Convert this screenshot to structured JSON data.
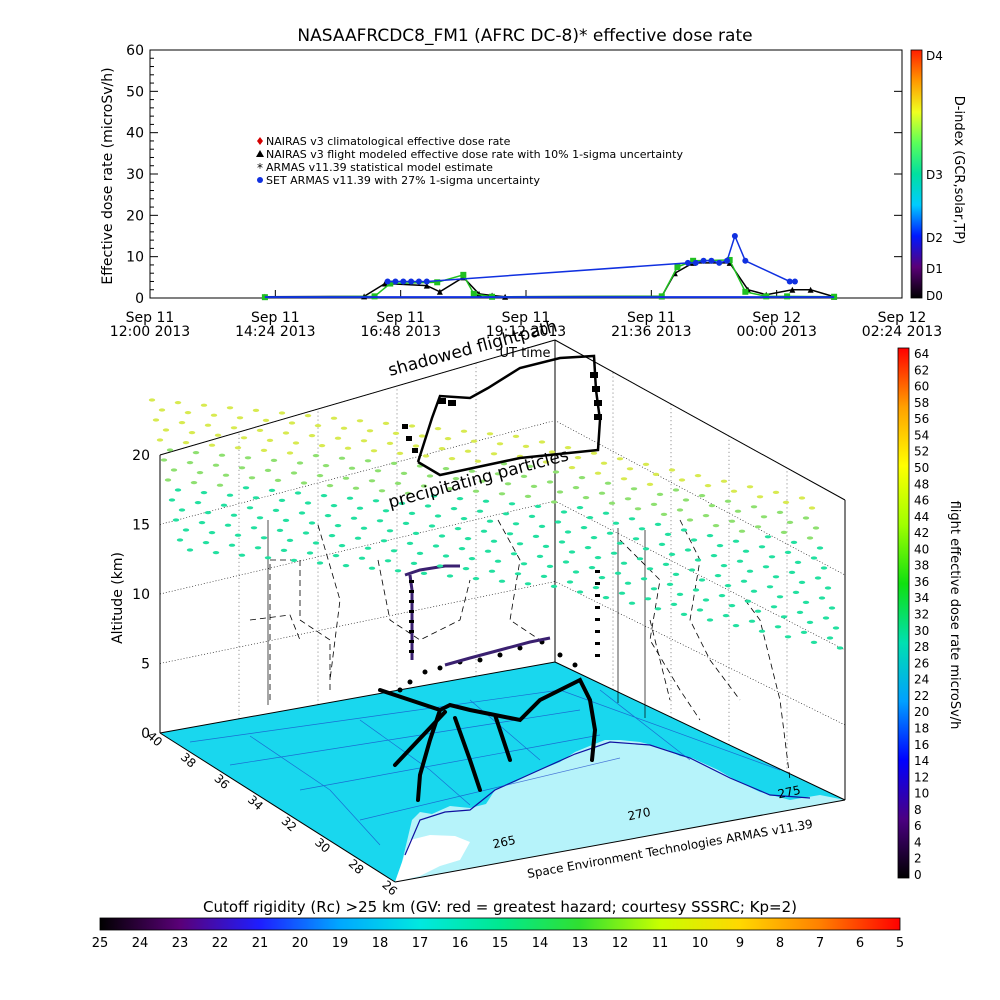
{
  "chart_data": [
    {
      "type": "line",
      "title": "NASAAFRCDC8_FM1 (AFRC DC-8)* effective dose rate",
      "xlabel": "UT time",
      "ylabel": "Effective dose rate (microSv/h)",
      "ylim": [
        0,
        60
      ],
      "yticks": [
        "0",
        "10",
        "20",
        "30",
        "40",
        "50",
        "60"
      ],
      "xticks": [
        {
          "day": "Sep 11",
          "time": "12:00 2013"
        },
        {
          "day": "Sep 11",
          "time": "14:24 2013"
        },
        {
          "day": "Sep 11",
          "time": "16:48 2013"
        },
        {
          "day": "Sep 11",
          "time": "19:12 2013"
        },
        {
          "day": "Sep 11",
          "time": "21:36 2013"
        },
        {
          "day": "Sep 12",
          "time": "00:00 2013"
        },
        {
          "day": "Sep 12",
          "time": "02:24 2013"
        }
      ],
      "x_hours": [
        0,
        2.4,
        4.8,
        7.2,
        9.6,
        12.0,
        14.4
      ],
      "legend": [
        {
          "label": "NAIRAS v3 climatological effective dose rate",
          "color": "#d40000",
          "marker": "diamond"
        },
        {
          "label": "NAIRAS v3 flight modeled effective dose rate with 10% 1-sigma uncertainty",
          "color": "#000000",
          "marker": "triangle"
        },
        {
          "label": "ARMAS v11.39 statistical model estimate",
          "color": "#20c020",
          "marker": "asterisk"
        },
        {
          "label": "SET ARMAS v11.39 with 27% 1-sigma uncertainty",
          "color": "#1030e0",
          "marker": "circle"
        }
      ],
      "legend_position": "top-left",
      "series": [
        {
          "name": "NAIRAS v3 flight modeled effective dose rate with 10% 1-sigma uncertainty",
          "x": [
            2.2,
            4.1,
            4.5,
            5.3,
            5.55,
            6.0,
            6.3,
            6.55,
            6.8,
            9.8,
            10.05,
            10.4,
            11.1,
            11.45,
            11.8,
            12.3,
            12.65,
            13.1
          ],
          "y": [
            0.3,
            0.4,
            3.5,
            3.0,
            1.5,
            5.0,
            1.0,
            0.6,
            0.3,
            0.4,
            6.0,
            8.5,
            8.5,
            2.0,
            0.8,
            2.0,
            2.0,
            0.3
          ]
        },
        {
          "name": "ARMAS v11.39 statistical model estimate",
          "x": [
            2.2,
            4.3,
            4.6,
            5.5,
            6.0,
            6.2,
            6.55,
            9.8,
            10.1,
            10.4,
            11.1,
            11.4,
            11.8,
            12.2,
            13.1
          ],
          "y": [
            0.2,
            0.4,
            3.5,
            3.8,
            5.6,
            1.0,
            0.3,
            0.4,
            7.5,
            9.0,
            9.2,
            1.5,
            0.4,
            0.4,
            0.3
          ]
        },
        {
          "name": "SET ARMAS v11.39 with 27% 1-sigma uncertainty",
          "x": [
            4.55,
            4.7,
            4.85,
            5.0,
            5.15,
            5.3,
            10.3,
            10.45,
            10.6,
            10.75,
            10.9,
            11.05,
            11.2,
            11.4,
            12.25,
            12.35
          ],
          "y": [
            4.0,
            4.0,
            4.0,
            4.0,
            4.0,
            4.0,
            8.5,
            8.5,
            9.0,
            9.0,
            8.5,
            9.0,
            15.0,
            9.0,
            4.0,
            4.0
          ]
        }
      ],
      "right_axis": {
        "label": "D-index (GCR,solar,TP)",
        "ticks": [
          "D0",
          "D1",
          "D2",
          "D3",
          "D4"
        ],
        "colors": [
          "#000000",
          "#5a0078",
          "#0018ff",
          "#00ccff",
          "#00e0a0",
          "#5aff5a",
          "#f0ff20",
          "#ff9900",
          "#ff1e00"
        ]
      }
    },
    {
      "type": "scatter",
      "subtype": "3d-flight-track",
      "zlabel": "Altitude (km)",
      "zticks": [
        "0",
        "5",
        "10",
        "15",
        "20"
      ],
      "zlim": [
        0,
        20
      ],
      "lat_ticks": [
        "40",
        "38",
        "36",
        "34",
        "32",
        "30",
        "28",
        "26"
      ],
      "lon_ticks": [
        "265",
        "270",
        "275"
      ],
      "annotations": [
        "shadowed flightpath",
        "precipitating particles",
        "Space Environment Technologies ARMAS v11.39"
      ],
      "dose_colorbar": {
        "label": "flight effective dose rate microSv/h",
        "ticks": [
          "0",
          "2",
          "4",
          "6",
          "8",
          "10",
          "12",
          "14",
          "16",
          "18",
          "20",
          "22",
          "24",
          "26",
          "28",
          "30",
          "32",
          "34",
          "36",
          "38",
          "40",
          "42",
          "44",
          "46",
          "48",
          "50",
          "52",
          "54",
          "56",
          "58",
          "60",
          "62",
          "64"
        ],
        "colors": [
          "#000000",
          "#4b0082",
          "#0000ff",
          "#00a0ff",
          "#00e0b0",
          "#10e010",
          "#a0ff00",
          "#ffff00",
          "#ffa000",
          "#ff0000"
        ]
      },
      "rigidity_colorbar": {
        "label": "Cutoff rigidity (Rc) >25 km (GV: red = greatest hazard; courtesy SSSRC; Kp=2)",
        "ticks": [
          "25",
          "24",
          "23",
          "22",
          "21",
          "20",
          "19",
          "18",
          "17",
          "16",
          "15",
          "14",
          "13",
          "12",
          "11",
          "10",
          "9",
          "8",
          "7",
          "6",
          "5"
        ],
        "colors": [
          "#000000",
          "#5a0078",
          "#1e1eff",
          "#00a8ff",
          "#00e8e0",
          "#00e890",
          "#30e030",
          "#c8ff00",
          "#ffd800",
          "#ff8000",
          "#ff0000"
        ]
      }
    }
  ]
}
